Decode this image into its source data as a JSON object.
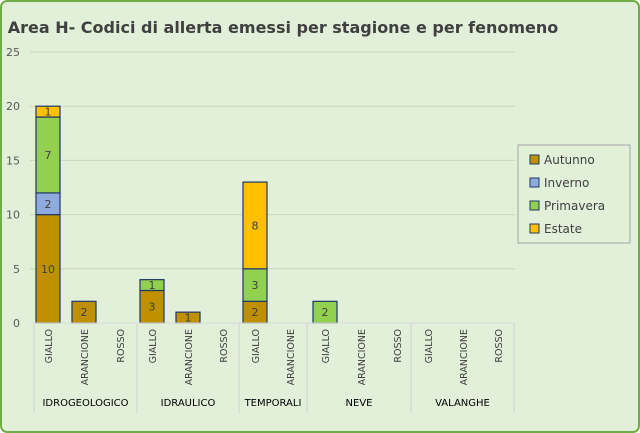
{
  "chart_data": {
    "type": "bar",
    "stacked": true,
    "title": "Area H- Codici di allerta emessi per stagione e per fenomeno",
    "xlabel": "",
    "ylabel": "",
    "ylim": [
      0,
      25
    ],
    "yticks": [
      0,
      5,
      10,
      15,
      20,
      25
    ],
    "grid": true,
    "legend_position": "right",
    "groups": [
      {
        "name": "IDROGEOLOGICO",
        "categories": [
          "GIALLO",
          "ARANCIONE",
          "ROSSO"
        ]
      },
      {
        "name": "IDRAULICO",
        "categories": [
          "GIALLO",
          "ARANCIONE",
          "ROSSO"
        ]
      },
      {
        "name": "TEMPORALI",
        "categories": [
          "GIALLO",
          "ARANCIONE"
        ]
      },
      {
        "name": "NEVE",
        "categories": [
          "GIALLO",
          "ARANCIONE",
          "ROSSO"
        ]
      },
      {
        "name": "VALANGHE",
        "categories": [
          "GIALLO",
          "ARANCIONE",
          "ROSSO"
        ]
      }
    ],
    "categories": [
      "GIALLO",
      "ARANCIONE",
      "ROSSO",
      "GIALLO",
      "ARANCIONE",
      "ROSSO",
      "GIALLO",
      "ARANCIONE",
      "GIALLO",
      "ARANCIONE",
      "ROSSO",
      "GIALLO",
      "ARANCIONE",
      "ROSSO"
    ],
    "series": [
      {
        "name": "Autunno",
        "color": "#bf9000",
        "values": [
          10,
          2,
          0,
          3,
          1,
          0,
          2,
          0,
          0,
          0,
          0,
          0,
          0,
          0
        ]
      },
      {
        "name": "Inverno",
        "color": "#8faadc",
        "values": [
          2,
          0,
          0,
          0,
          0,
          0,
          0,
          0,
          0,
          0,
          0,
          0,
          0,
          0
        ]
      },
      {
        "name": "Primavera",
        "color": "#92d050",
        "values": [
          7,
          0,
          0,
          1,
          0,
          0,
          3,
          0,
          2,
          0,
          0,
          0,
          0,
          0
        ]
      },
      {
        "name": "Estate",
        "color": "#ffc000",
        "values": [
          1,
          0,
          0,
          0,
          0,
          0,
          8,
          0,
          0,
          0,
          0,
          0,
          0,
          0
        ]
      }
    ]
  },
  "colors": {
    "background": "#e2efd9",
    "border": "#70ad47",
    "gridline": "#c8d7bd",
    "legend_bg": "#e2efd9",
    "legend_border": "#a6a6a6"
  }
}
